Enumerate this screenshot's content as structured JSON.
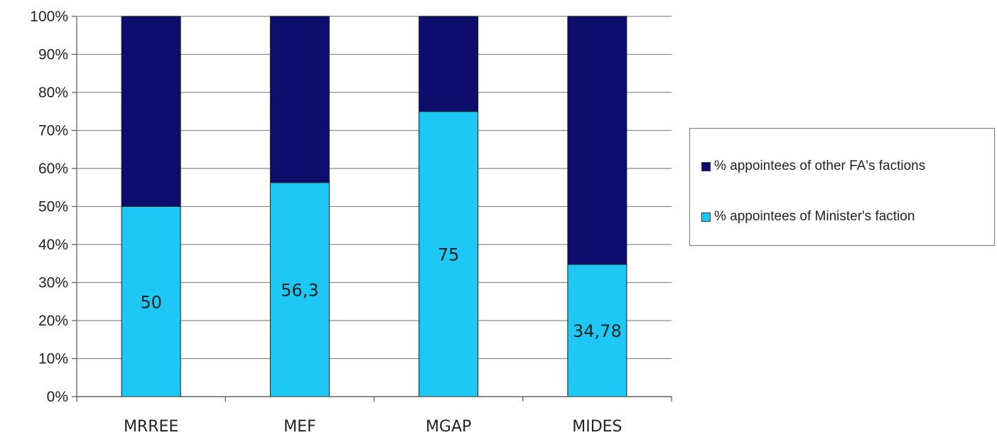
{
  "chart_data": {
    "type": "bar",
    "stacked": true,
    "normalized": true,
    "categories": [
      "MRREE",
      "MEF",
      "MGAP",
      "MIDES"
    ],
    "series": [
      {
        "name": "% appointees of Minister's faction",
        "values": [
          50,
          56.3,
          75,
          34.78
        ],
        "color": "#1ec8f5",
        "data_labels": [
          "50",
          "56,3",
          "75",
          "34,78"
        ]
      },
      {
        "name": "% appointees of other FA's factions",
        "values": [
          50,
          43.7,
          25,
          65.22
        ],
        "color": "#0d0d6e"
      }
    ],
    "y_ticks": [
      "0%",
      "10%",
      "20%",
      "30%",
      "40%",
      "50%",
      "60%",
      "70%",
      "80%",
      "90%",
      "100%"
    ],
    "ylim": [
      0,
      100
    ],
    "grid": true,
    "legend_position": "right"
  }
}
